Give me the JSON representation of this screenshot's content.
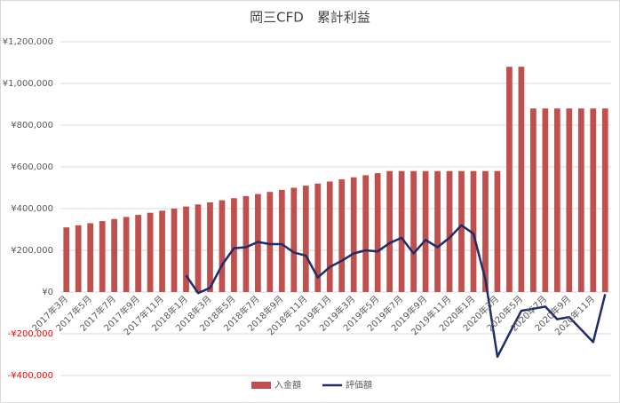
{
  "chart_data": {
    "type": "bar-line",
    "title": "岡三CFD　累計利益",
    "categories": [
      "2017年3月",
      null,
      "2017年5月",
      null,
      "2017年7月",
      null,
      "2017年9月",
      null,
      "2017年11月",
      null,
      "2018年1月",
      null,
      "2018年3月",
      null,
      "2018年5月",
      null,
      "2018年7月",
      null,
      "2018年9月",
      null,
      "2018年11月",
      null,
      "2019年1月",
      null,
      "2019年3月",
      null,
      "2019年5月",
      null,
      "2019年7月",
      null,
      "2019年9月",
      null,
      "2019年11月",
      null,
      "2020年1月",
      null,
      "2020年3月",
      null,
      "2020年5月",
      null,
      "2020年7月",
      null,
      "2020年9月",
      null,
      "2020年11月",
      null
    ],
    "series": [
      {
        "name": "入金額",
        "type": "bar",
        "color": "#c0504d",
        "values": [
          310000,
          320000,
          330000,
          340000,
          350000,
          360000,
          370000,
          380000,
          390000,
          400000,
          410000,
          420000,
          430000,
          440000,
          450000,
          460000,
          470000,
          480000,
          490000,
          500000,
          510000,
          520000,
          530000,
          540000,
          550000,
          560000,
          570000,
          580000,
          580000,
          580000,
          580000,
          580000,
          580000,
          580000,
          580000,
          580000,
          580000,
          1080000,
          1080000,
          880000,
          880000,
          880000,
          880000,
          880000,
          880000,
          880000
        ]
      },
      {
        "name": "評価額",
        "type": "line",
        "color": "#1f2d6b",
        "values": [
          null,
          null,
          null,
          null,
          null,
          null,
          null,
          null,
          null,
          null,
          80000,
          -5000,
          20000,
          130000,
          210000,
          215000,
          240000,
          230000,
          230000,
          190000,
          175000,
          70000,
          120000,
          150000,
          185000,
          200000,
          195000,
          235000,
          260000,
          185000,
          250000,
          215000,
          260000,
          320000,
          280000,
          60000,
          -310000,
          -200000,
          -90000,
          -80000,
          -70000,
          -130000,
          -120000,
          -180000,
          -240000,
          -10000
        ]
      }
    ],
    "ylim": [
      -400000,
      1200000
    ],
    "yticks": [
      {
        "value": -400000,
        "label": "-¥400,000"
      },
      {
        "value": -200000,
        "label": "-¥200,000"
      },
      {
        "value": 0,
        "label": "¥0"
      },
      {
        "value": 200000,
        "label": "¥200,000"
      },
      {
        "value": 400000,
        "label": "¥400,000"
      },
      {
        "value": 600000,
        "label": "¥600,000"
      },
      {
        "value": 800000,
        "label": "¥800,000"
      },
      {
        "value": 1000000,
        "label": "¥1,000,000"
      },
      {
        "value": 1200000,
        "label": "¥1,200,000"
      }
    ],
    "legend": "bottom"
  }
}
